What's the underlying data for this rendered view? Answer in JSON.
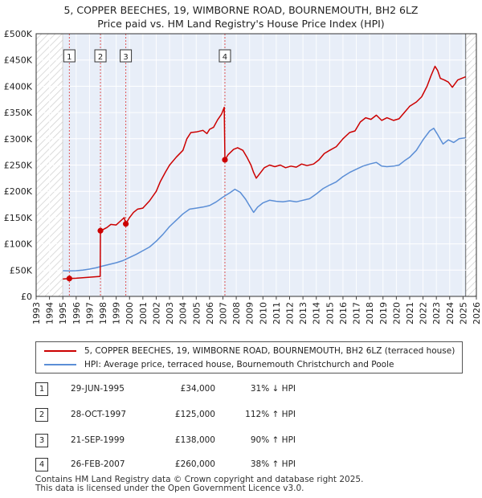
{
  "title_line1": "5, COPPER BEECHES, 19, WIMBORNE ROAD, BOURNEMOUTH, BH2 6LZ",
  "title_line2": "Price paid vs. HM Land Registry's House Price Index (HPI)",
  "chart_data": {
    "type": "line",
    "xlim": [
      1993,
      2026
    ],
    "ylim": [
      0,
      500000
    ],
    "x_ticks": [
      "1993",
      "1994",
      "1995",
      "1996",
      "1997",
      "1998",
      "1999",
      "2000",
      "2001",
      "2002",
      "2003",
      "2004",
      "2005",
      "2006",
      "2007",
      "2008",
      "2009",
      "2010",
      "2011",
      "2012",
      "2013",
      "2014",
      "2015",
      "2016",
      "2017",
      "2018",
      "2019",
      "2020",
      "2021",
      "2022",
      "2023",
      "2024",
      "2025",
      "2026"
    ],
    "y_ticks": [
      {
        "value": 0,
        "label": "£0"
      },
      {
        "value": 50000,
        "label": "£50K"
      },
      {
        "value": 100000,
        "label": "£100K"
      },
      {
        "value": 150000,
        "label": "£150K"
      },
      {
        "value": 200000,
        "label": "£200K"
      },
      {
        "value": 250000,
        "label": "£250K"
      },
      {
        "value": 300000,
        "label": "£300K"
      },
      {
        "value": 350000,
        "label": "£350K"
      },
      {
        "value": 400000,
        "label": "£400K"
      },
      {
        "value": 450000,
        "label": "£450K"
      },
      {
        "value": 500000,
        "label": "£500K"
      }
    ],
    "hatched_before": 1995.0,
    "hatched_after": 2025.2,
    "series": [
      {
        "name": "5, COPPER BEECHES, 19, WIMBORNE ROAD, BOURNEMOUTH, BH2 6LZ (terraced house)",
        "color": "#cc0000",
        "points": [
          [
            1995.0,
            33000
          ],
          [
            1995.49,
            34000
          ],
          [
            1996.0,
            34500
          ],
          [
            1996.5,
            35500
          ],
          [
            1997.0,
            36500
          ],
          [
            1997.5,
            37500
          ],
          [
            1997.8,
            38000
          ],
          [
            1997.82,
            125000
          ],
          [
            1998.0,
            127000
          ],
          [
            1998.3,
            131000
          ],
          [
            1998.6,
            137000
          ],
          [
            1999.0,
            136000
          ],
          [
            1999.3,
            143000
          ],
          [
            1999.6,
            150000
          ],
          [
            1999.72,
            138000
          ],
          [
            2000.0,
            150000
          ],
          [
            2000.3,
            160000
          ],
          [
            2000.6,
            166000
          ],
          [
            2001.0,
            168000
          ],
          [
            2001.5,
            182000
          ],
          [
            2002.0,
            200000
          ],
          [
            2002.3,
            218000
          ],
          [
            2002.7,
            237000
          ],
          [
            2003.0,
            250000
          ],
          [
            2003.5,
            265000
          ],
          [
            2004.0,
            278000
          ],
          [
            2004.3,
            300000
          ],
          [
            2004.6,
            312000
          ],
          [
            2005.0,
            313000
          ],
          [
            2005.5,
            316000
          ],
          [
            2005.8,
            310000
          ],
          [
            2006.0,
            318000
          ],
          [
            2006.3,
            322000
          ],
          [
            2006.6,
            336000
          ],
          [
            2006.9,
            347000
          ],
          [
            2007.1,
            360000
          ],
          [
            2007.15,
            260000
          ],
          [
            2007.4,
            270000
          ],
          [
            2007.8,
            280000
          ],
          [
            2008.1,
            283000
          ],
          [
            2008.5,
            278000
          ],
          [
            2008.8,
            265000
          ],
          [
            2009.1,
            250000
          ],
          [
            2009.3,
            236000
          ],
          [
            2009.5,
            225000
          ],
          [
            2009.8,
            235000
          ],
          [
            2010.1,
            245000
          ],
          [
            2010.5,
            250000
          ],
          [
            2010.9,
            247000
          ],
          [
            2011.3,
            250000
          ],
          [
            2011.7,
            245000
          ],
          [
            2012.1,
            248000
          ],
          [
            2012.5,
            246000
          ],
          [
            2012.9,
            252000
          ],
          [
            2013.3,
            249000
          ],
          [
            2013.8,
            252000
          ],
          [
            2014.2,
            260000
          ],
          [
            2014.6,
            272000
          ],
          [
            2015.0,
            278000
          ],
          [
            2015.5,
            285000
          ],
          [
            2016.0,
            300000
          ],
          [
            2016.5,
            312000
          ],
          [
            2016.9,
            315000
          ],
          [
            2017.3,
            332000
          ],
          [
            2017.7,
            340000
          ],
          [
            2018.1,
            337000
          ],
          [
            2018.5,
            345000
          ],
          [
            2018.9,
            335000
          ],
          [
            2019.3,
            340000
          ],
          [
            2019.8,
            335000
          ],
          [
            2020.2,
            338000
          ],
          [
            2020.6,
            350000
          ],
          [
            2021.0,
            362000
          ],
          [
            2021.5,
            370000
          ],
          [
            2021.9,
            380000
          ],
          [
            2022.3,
            400000
          ],
          [
            2022.6,
            420000
          ],
          [
            2022.9,
            438000
          ],
          [
            2023.1,
            430000
          ],
          [
            2023.3,
            415000
          ],
          [
            2023.6,
            412000
          ],
          [
            2023.9,
            408000
          ],
          [
            2024.2,
            398000
          ],
          [
            2024.6,
            412000
          ],
          [
            2024.9,
            415000
          ],
          [
            2025.2,
            418000
          ]
        ]
      },
      {
        "name": "HPI: Average price, terraced house, Bournemouth Christchurch and Poole",
        "color": "#5b8ed6",
        "points": [
          [
            1995.0,
            49000
          ],
          [
            1995.5,
            48500
          ],
          [
            1996.0,
            49000
          ],
          [
            1996.5,
            50000
          ],
          [
            1997.0,
            52000
          ],
          [
            1997.5,
            54500
          ],
          [
            1998.0,
            58000
          ],
          [
            1998.5,
            61000
          ],
          [
            1999.0,
            64000
          ],
          [
            1999.5,
            68000
          ],
          [
            2000.0,
            74000
          ],
          [
            2000.5,
            80000
          ],
          [
            2001.0,
            87000
          ],
          [
            2001.5,
            94000
          ],
          [
            2002.0,
            105000
          ],
          [
            2002.5,
            118000
          ],
          [
            2003.0,
            133000
          ],
          [
            2003.5,
            145000
          ],
          [
            2004.0,
            157000
          ],
          [
            2004.5,
            166000
          ],
          [
            2005.0,
            168000
          ],
          [
            2005.5,
            170000
          ],
          [
            2006.0,
            173000
          ],
          [
            2006.5,
            180000
          ],
          [
            2007.0,
            189000
          ],
          [
            2007.5,
            197000
          ],
          [
            2007.9,
            204000
          ],
          [
            2008.3,
            198000
          ],
          [
            2008.7,
            185000
          ],
          [
            2009.1,
            168000
          ],
          [
            2009.3,
            160000
          ],
          [
            2009.6,
            170000
          ],
          [
            2010.0,
            178000
          ],
          [
            2010.5,
            183000
          ],
          [
            2011.0,
            181000
          ],
          [
            2011.5,
            180000
          ],
          [
            2012.0,
            182000
          ],
          [
            2012.5,
            180000
          ],
          [
            2013.0,
            183000
          ],
          [
            2013.5,
            186000
          ],
          [
            2014.0,
            195000
          ],
          [
            2014.5,
            205000
          ],
          [
            2015.0,
            212000
          ],
          [
            2015.5,
            218000
          ],
          [
            2016.0,
            228000
          ],
          [
            2016.5,
            236000
          ],
          [
            2017.0,
            242000
          ],
          [
            2017.5,
            248000
          ],
          [
            2018.0,
            252000
          ],
          [
            2018.5,
            255000
          ],
          [
            2018.9,
            248000
          ],
          [
            2019.3,
            247000
          ],
          [
            2019.8,
            248000
          ],
          [
            2020.2,
            250000
          ],
          [
            2020.6,
            258000
          ],
          [
            2021.0,
            265000
          ],
          [
            2021.5,
            278000
          ],
          [
            2022.0,
            298000
          ],
          [
            2022.5,
            315000
          ],
          [
            2022.8,
            320000
          ],
          [
            2023.1,
            308000
          ],
          [
            2023.5,
            290000
          ],
          [
            2023.9,
            298000
          ],
          [
            2024.3,
            293000
          ],
          [
            2024.7,
            300000
          ],
          [
            2025.2,
            302000
          ]
        ]
      }
    ],
    "sales": [
      {
        "id": "1",
        "x": 1995.49,
        "y": 34000
      },
      {
        "id": "2",
        "x": 1997.82,
        "y": 125000
      },
      {
        "id": "3",
        "x": 1999.72,
        "y": 138000
      },
      {
        "id": "4",
        "x": 2007.15,
        "y": 260000
      }
    ]
  },
  "legend": {
    "red_label": "5, COPPER BEECHES, 19, WIMBORNE ROAD, BOURNEMOUTH, BH2 6LZ (terraced house)",
    "blue_label": "HPI: Average price, terraced house, Bournemouth Christchurch and Poole"
  },
  "transactions": [
    {
      "num": "1",
      "date": "29-JUN-1995",
      "price": "£34,000",
      "hpi": "31% ↓ HPI"
    },
    {
      "num": "2",
      "date": "28-OCT-1997",
      "price": "£125,000",
      "hpi": "112% ↑ HPI"
    },
    {
      "num": "3",
      "date": "21-SEP-1999",
      "price": "£138,000",
      "hpi": "90% ↑ HPI"
    },
    {
      "num": "4",
      "date": "26-FEB-2007",
      "price": "£260,000",
      "hpi": "38% ↑ HPI"
    }
  ],
  "footer_line1": "Contains HM Land Registry data © Crown copyright and database right 2025.",
  "footer_line2": "This data is licensed under the Open Government Licence v3.0."
}
